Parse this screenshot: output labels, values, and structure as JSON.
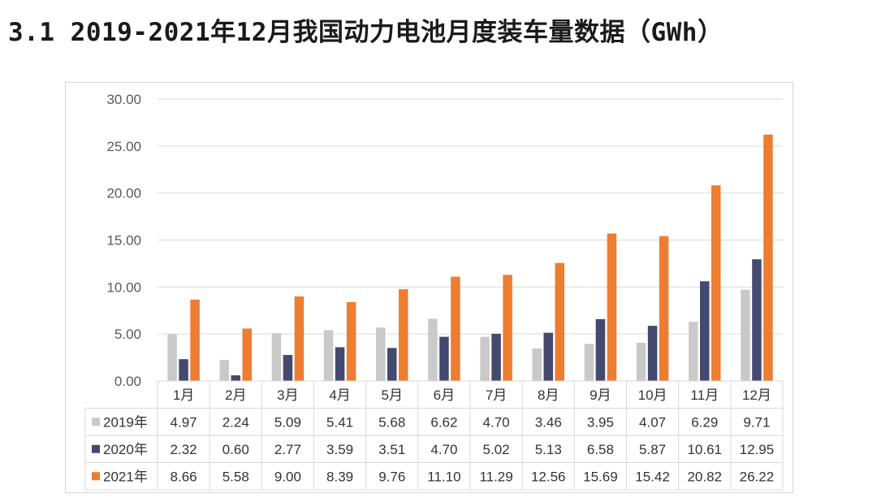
{
  "title": "3.1 2019-2021年12月我国动力电池月度装车量数据（GWh）",
  "chart_data": {
    "type": "bar",
    "title": "",
    "xlabel": "",
    "ylabel": "",
    "ylim": [
      0,
      30
    ],
    "yticks": [
      "0.00",
      "5.00",
      "10.00",
      "15.00",
      "20.00",
      "25.00",
      "30.00"
    ],
    "grid": true,
    "legend": "data-table-left",
    "categories": [
      "1月",
      "2月",
      "3月",
      "4月",
      "5月",
      "6月",
      "7月",
      "8月",
      "9月",
      "10月",
      "11月",
      "12月"
    ],
    "series": [
      {
        "name": "2019年",
        "color": "#c9c9c9",
        "values": [
          4.97,
          2.24,
          5.09,
          5.41,
          5.68,
          6.62,
          4.7,
          3.46,
          3.95,
          4.07,
          6.29,
          9.71
        ],
        "labels": [
          "4.97",
          "2.24",
          "5.09",
          "5.41",
          "5.68",
          "6.62",
          "4.70",
          "3.46",
          "3.95",
          "4.07",
          "6.29",
          "9.71"
        ]
      },
      {
        "name": "2020年",
        "color": "#44496e",
        "values": [
          2.32,
          0.6,
          2.77,
          3.59,
          3.51,
          4.7,
          5.02,
          5.13,
          6.58,
          5.87,
          10.61,
          12.95
        ],
        "labels": [
          "2.32",
          "0.60",
          "2.77",
          "3.59",
          "3.51",
          "4.70",
          "5.02",
          "5.13",
          "6.58",
          "5.87",
          "10.61",
          "12.95"
        ]
      },
      {
        "name": "2021年",
        "color": "#ed7d31",
        "values": [
          8.66,
          5.58,
          9.0,
          8.39,
          9.76,
          11.1,
          11.29,
          12.56,
          15.69,
          15.42,
          20.82,
          26.22
        ],
        "labels": [
          "8.66",
          "5.58",
          "9.00",
          "8.39",
          "9.76",
          "11.10",
          "11.29",
          "12.56",
          "15.69",
          "15.42",
          "20.82",
          "26.22"
        ]
      }
    ]
  }
}
